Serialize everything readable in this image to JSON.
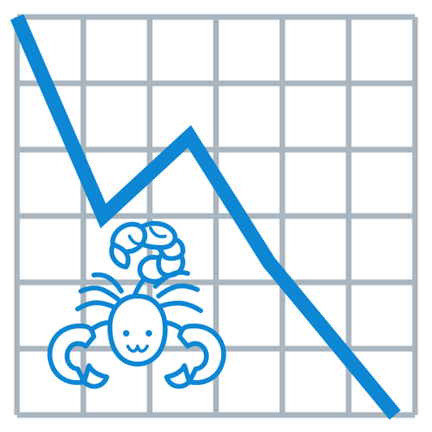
{
  "image": {
    "subject": "down-trending-chart-with-scorpion",
    "colors": {
      "background": "#ffffff",
      "grid": "#aab6bf",
      "line": "#0d86d3",
      "scorpion_stroke": "#0d86d3",
      "scorpion_fill": "#ffffff"
    }
  },
  "chart_data": {
    "type": "line",
    "grid": true,
    "grid_columns": 6,
    "grid_rows": 6,
    "series": [
      {
        "values": [
          6.0,
          3.0,
          4.2,
          2.3,
          0.0
        ],
        "x": [
          0.0,
          1.3,
          2.6,
          3.8,
          5.7
        ]
      }
    ],
    "xlim": [
      0,
      6
    ],
    "ylim": [
      0,
      6
    ]
  }
}
